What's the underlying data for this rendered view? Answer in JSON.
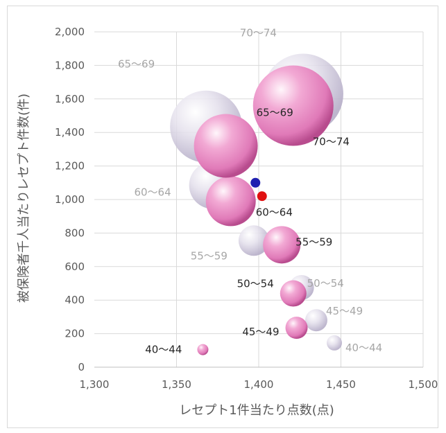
{
  "chart_data": {
    "type": "scatter",
    "xlabel": "レセプト1件当たり点数(点)",
    "ylabel": "被保険者千人当たりレセプト件数(件)",
    "xlim": [
      1300,
      1500
    ],
    "ylim": [
      0,
      2000
    ],
    "x_ticks": [
      "1,300",
      "1,350",
      "1,400",
      "1,450",
      "1,500"
    ],
    "y_ticks": [
      "0",
      "200",
      "400",
      "600",
      "800",
      "1,000",
      "1,200",
      "1,400",
      "1,600",
      "1,800",
      "2,000"
    ],
    "grid": true,
    "series": [
      {
        "color": "#e8a0cc",
        "points": [
          {
            "label": "40〜44",
            "x": 1366,
            "y": 105
          },
          {
            "label": "45〜49",
            "x": 1423,
            "y": 235
          },
          {
            "label": "50〜54",
            "x": 1421,
            "y": 440
          },
          {
            "label": "55〜59",
            "x": 1414,
            "y": 730
          },
          {
            "label": "60〜64",
            "x": 1383,
            "y": 990
          },
          {
            "label": "65〜69",
            "x": 1380,
            "y": 1320
          },
          {
            "label": "70〜74",
            "x": 1421,
            "y": 1560
          }
        ]
      },
      {
        "color": "#c8c0d8",
        "points": [
          {
            "label": "40〜44",
            "x": 1446,
            "y": 145
          },
          {
            "label": "45〜49",
            "x": 1435,
            "y": 280
          },
          {
            "label": "50〜54",
            "x": 1426,
            "y": 475
          },
          {
            "label": "55〜59",
            "x": 1397,
            "y": 755
          },
          {
            "label": "60〜64",
            "x": 1372,
            "y": 1085
          },
          {
            "label": "65〜69",
            "x": 1368,
            "y": 1435
          },
          {
            "label": "70〜74",
            "x": 1427,
            "y": 1630
          }
        ]
      }
    ],
    "markers": [
      {
        "x": 1398,
        "y": 1100,
        "color": "#1f1fb0"
      },
      {
        "x": 1402,
        "y": 1020,
        "color": "#e01010"
      }
    ]
  }
}
